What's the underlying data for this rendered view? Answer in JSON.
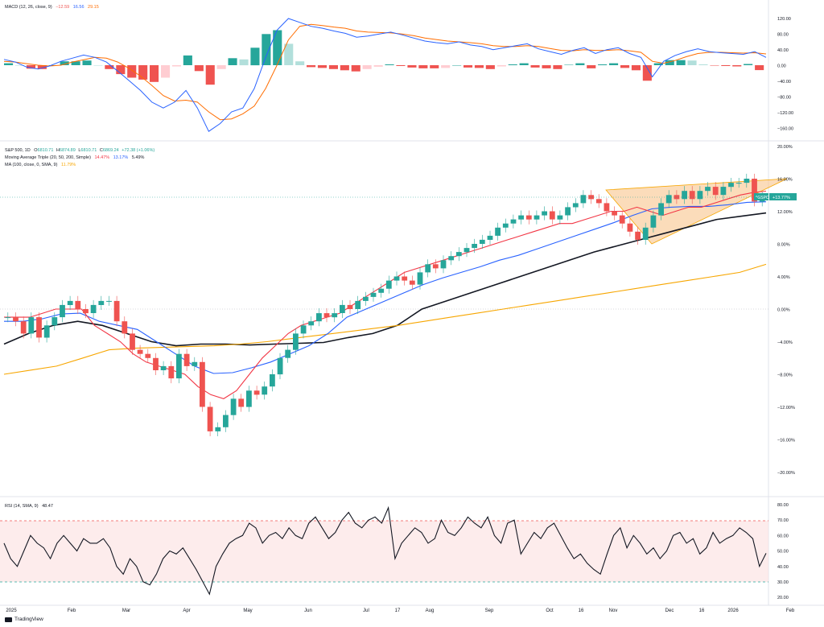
{
  "macd_legend": {
    "name": "MACD (12, 26, close, 9)",
    "hist": "−12.59",
    "macd": "16.56",
    "signal": "29.15"
  },
  "price_legend": {
    "name": "S&P 500, 1D",
    "o_label": "O",
    "o": "6810.71",
    "h_label": "H",
    "h": "6874.89",
    "l_label": "L",
    "l": "6810.71",
    "c_label": "C",
    "c": "6869.24",
    "change": "+72.38 (+1.06%)"
  },
  "ma_legend": {
    "name": "Moving Average Triple (20, 50, 200, Simple)",
    "v1": "14.47%",
    "v2": "13.17%",
    "v3": "5.49%"
  },
  "ma100_legend": {
    "name": "MA (100, close, 0, SMA, 9)",
    "v1": "11.79%"
  },
  "rsi_legend": {
    "name": "RSI (14, SMA, 9)",
    "v1": "48.47"
  },
  "price_badge": {
    "symbol": "^GSPC",
    "value": "+13.77%"
  },
  "colors": {
    "macd_line": "#2962ff",
    "signal_line": "#ff6d00",
    "hist_up": "#26a69a",
    "hist_down": "#ef5350",
    "ma20": "#f23645",
    "ma50": "#2962ff",
    "ma200": "#131722",
    "ma100": "#f7a600",
    "wedge_fill": "#f9c995",
    "rsi_line": "#131722",
    "rsi_band": "#fce4e4"
  },
  "brand": "TradingView",
  "chart_data": [
    {
      "type": "line",
      "title": "MACD (12, 26, close, 9)",
      "y_ticks": [
        "120.00",
        "80.00",
        "40.00",
        "0.00",
        "−40.00",
        "−80.00",
        "−120.00",
        "−160.00"
      ],
      "ylim": [
        -200,
        140
      ],
      "series": [
        {
          "name": "MACD",
          "values": [
            15,
            8,
            -5,
            -10,
            -2,
            10,
            18,
            26,
            20,
            8,
            -15,
            -40,
            -65,
            -95,
            -110,
            -95,
            -65,
            -110,
            -170,
            -150,
            -120,
            -110,
            -60,
            20,
            90,
            120,
            110,
            100,
            95,
            88,
            82,
            72,
            75,
            80,
            85,
            78,
            70,
            62,
            58,
            55,
            60,
            52,
            48,
            40,
            45,
            50,
            55,
            42,
            35,
            28,
            38,
            45,
            30,
            40,
            45,
            30,
            20,
            -30,
            10,
            25,
            35,
            42,
            35,
            32,
            30,
            28,
            35,
            20
          ]
        },
        {
          "name": "Signal",
          "values": [
            10,
            8,
            4,
            0,
            -2,
            0,
            8,
            14,
            20,
            18,
            8,
            -8,
            -28,
            -52,
            -78,
            -92,
            -90,
            -95,
            -120,
            -140,
            -138,
            -125,
            -105,
            -60,
            0,
            65,
            100,
            105,
            102,
            98,
            95,
            88,
            85,
            84,
            83,
            80,
            76,
            70,
            66,
            62,
            60,
            58,
            55,
            50,
            48,
            48,
            50,
            48,
            43,
            38,
            37,
            40,
            38,
            38,
            40,
            37,
            33,
            10,
            5,
            12,
            22,
            30,
            33,
            33,
            32,
            31,
            32,
            29
          ]
        },
        {
          "name": "Histogram",
          "values": [
            5,
            0,
            -9,
            -10,
            0,
            10,
            10,
            12,
            0,
            -10,
            -23,
            -32,
            -37,
            -43,
            -32,
            -3,
            25,
            -15,
            -50,
            -10,
            18,
            15,
            45,
            80,
            90,
            55,
            10,
            -5,
            -7,
            -10,
            -13,
            -16,
            -10,
            -4,
            2,
            -2,
            -6,
            -8,
            -8,
            -7,
            0,
            -6,
            -7,
            -10,
            -3,
            2,
            5,
            -6,
            -8,
            -10,
            1,
            5,
            -8,
            2,
            5,
            -7,
            -13,
            -40,
            5,
            13,
            13,
            12,
            2,
            -1,
            -2,
            -3,
            3,
            -12.59
          ]
        }
      ]
    },
    {
      "type": "line",
      "title": "S&P 500, 1D",
      "y_ticks": [
        "20.00%",
        "16.00%",
        "12.00%",
        "8.00%",
        "4.00%",
        "0.00%",
        "−4.00%",
        "−8.00%",
        "−12.00%",
        "−16.00%",
        "−20.00%"
      ],
      "ylim": [
        -22,
        20
      ],
      "x_ticks": [
        "2025",
        "Feb",
        "Mar",
        "Apr",
        "May",
        "Jun",
        "Jul",
        "17",
        "Aug",
        "Sep",
        "Oct",
        "16",
        "Nov",
        "Dec",
        "16",
        "2026",
        "Feb"
      ],
      "series": [
        {
          "name": "S&P 500",
          "values": [
            -1.0,
            -1.5,
            -3.0,
            -1.0,
            -3.5,
            -2.0,
            -1.0,
            0.5,
            1.0,
            0.0,
            -0.5,
            0.5,
            1.0,
            1.0,
            -1.5,
            -3.0,
            -5.0,
            -5.5,
            -6.0,
            -7.5,
            -7.0,
            -8.5,
            -5.5,
            -7.0,
            -6.5,
            -12.0,
            -15.0,
            -14.5,
            -13.0,
            -11.0,
            -12.0,
            -10.0,
            -10.5,
            -9.5,
            -8.0,
            -6.0,
            -5.0,
            -3.0,
            -2.0,
            -1.5,
            -0.5,
            -1.0,
            -0.5,
            0.5,
            0.0,
            1.0,
            1.5,
            2.0,
            2.5,
            3.5,
            4.0,
            3.5,
            3.0,
            4.5,
            5.5,
            5.0,
            6.0,
            6.5,
            7.0,
            7.5,
            8.0,
            8.5,
            9.0,
            10.0,
            10.5,
            11.0,
            11.5,
            11.0,
            11.5,
            12.0,
            11.0,
            11.5,
            12.5,
            13.0,
            14.0,
            13.5,
            13.0,
            12.0,
            11.5,
            10.5,
            9.5,
            8.5,
            10.0,
            11.5,
            13.0,
            14.0,
            13.5,
            14.5,
            13.5,
            14.5,
            15.0,
            14.0,
            15.0,
            15.5,
            15.5,
            16.0,
            13.2,
            13.77
          ]
        },
        {
          "name": "MA 20",
          "values": [
            -1,
            -1,
            -1,
            -0.5,
            0,
            0,
            0,
            -2,
            -3,
            -4,
            -5.5,
            -6.5,
            -7,
            -7.5,
            -8,
            -9.5,
            -10.5,
            -11,
            -10,
            -8,
            -6,
            -4.5,
            -3,
            -2,
            -1.5,
            -1,
            -0.5,
            0.5,
            1.5,
            2.5,
            3.5,
            4.5,
            5,
            5.5,
            6,
            6.5,
            7,
            7.5,
            8,
            8.5,
            9,
            9.5,
            10,
            10.5,
            10.5,
            11,
            11.5,
            12,
            12,
            12.5,
            12,
            11.5,
            12,
            12.5,
            12.5,
            13,
            13.5,
            14,
            14.3,
            14.47
          ]
        },
        {
          "name": "MA 50",
          "values": [
            -1.5,
            -1.5,
            -1.2,
            -0.6,
            -0.5,
            -1.5,
            -2,
            -2.5,
            -4,
            -5.5,
            -7,
            -7.9,
            -7.8,
            -7.2,
            -6.5,
            -5.5,
            -4.5,
            -3,
            -1,
            0,
            1,
            2,
            3,
            3.8,
            4.5,
            5.2,
            6,
            6.6,
            7.4,
            8.2,
            9,
            9.8,
            10.6,
            11.5,
            12.3,
            12.5,
            12.6,
            12.6,
            12.8,
            13.1,
            13.17
          ]
        },
        {
          "name": "MA 100",
          "values": [
            -4.3,
            -3,
            -2,
            -1.5,
            -2,
            -3,
            -4,
            -4.5,
            -4.3,
            -4.3,
            -4.4,
            -4.3,
            -4.2,
            -4.1,
            -3.5,
            -3,
            -2,
            0,
            1,
            2,
            3,
            4,
            5,
            6,
            7,
            7.8,
            8.6,
            9.4,
            10.2,
            11,
            11.4,
            11.79
          ]
        },
        {
          "name": "MA 200",
          "values": [
            -8,
            -7.5,
            -7,
            -6,
            -5,
            -4.8,
            -4.7,
            -4.6,
            -4.5,
            -4.3,
            -4,
            -3.6,
            -3.2,
            -2.8,
            -2.4,
            -2,
            -1.5,
            -1,
            -0.5,
            0,
            0.5,
            1,
            1.5,
            2,
            2.5,
            3,
            3.5,
            4,
            4.5,
            5.49
          ]
        }
      ]
    },
    {
      "type": "line",
      "title": "RSI (14, SMA, 9)",
      "y_ticks": [
        "80.00",
        "70.00",
        "60.00",
        "50.00",
        "40.00",
        "30.00",
        "20.00"
      ],
      "ylim": [
        20,
        80
      ],
      "series": [
        {
          "name": "RSI",
          "values": [
            55,
            45,
            40,
            50,
            60,
            55,
            52,
            45,
            55,
            60,
            55,
            50,
            58,
            55,
            55,
            58,
            52,
            40,
            35,
            45,
            40,
            30,
            28,
            35,
            45,
            50,
            48,
            52,
            45,
            38,
            30,
            22,
            40,
            48,
            55,
            58,
            60,
            68,
            65,
            55,
            60,
            62,
            58,
            65,
            60,
            58,
            68,
            72,
            65,
            58,
            62,
            70,
            75,
            68,
            65,
            70,
            72,
            68,
            78,
            45,
            55,
            60,
            65,
            62,
            55,
            58,
            70,
            62,
            60,
            65,
            72,
            68,
            65,
            72,
            60,
            55,
            68,
            70,
            48,
            55,
            62,
            58,
            65,
            68,
            60,
            52,
            45,
            48,
            42,
            38,
            35,
            48,
            60,
            65,
            52,
            60,
            55,
            48,
            52,
            45,
            50,
            60,
            62,
            55,
            58,
            48,
            52,
            62,
            55,
            58,
            60,
            65,
            62,
            58,
            40,
            48.47
          ]
        }
      ],
      "bands": [
        30,
        70
      ]
    }
  ]
}
